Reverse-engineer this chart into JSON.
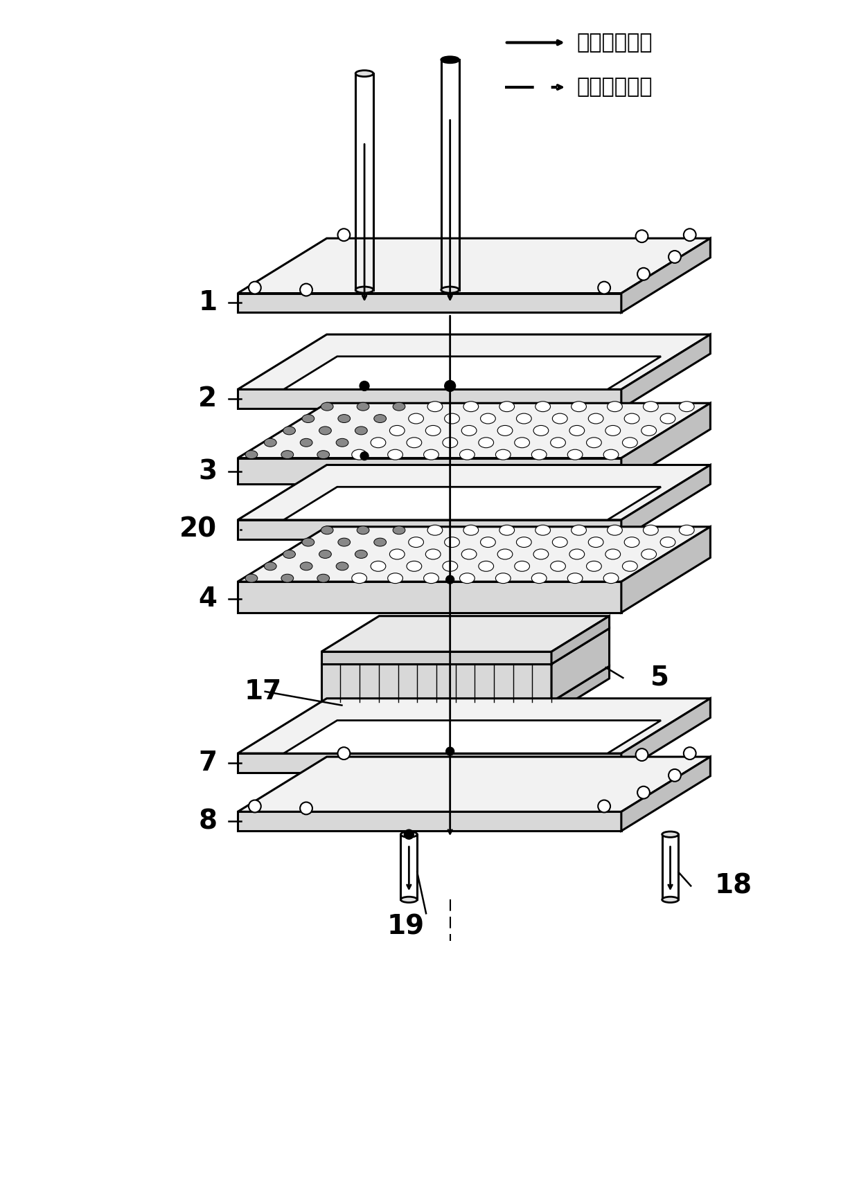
{
  "bg_color": "#ffffff",
  "line_color": "#000000",
  "legend": {
    "solid_label": "重整反应通路",
    "dashed_label": "燃烧反应通路"
  },
  "font_size_label": 28,
  "font_size_legend": 22
}
